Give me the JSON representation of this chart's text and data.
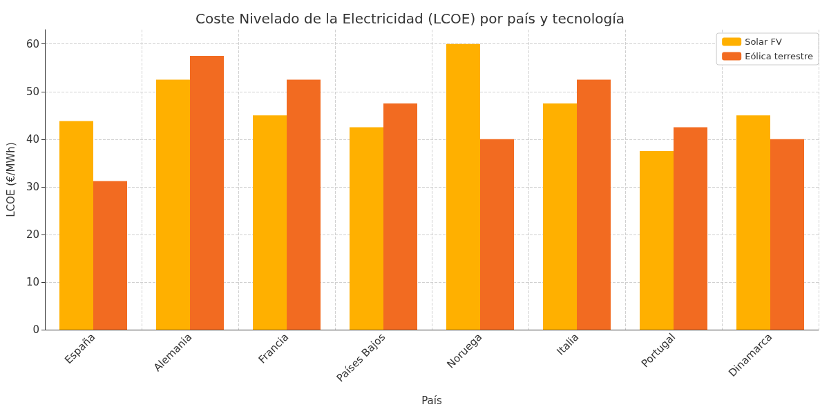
{
  "chart_data": {
    "type": "bar",
    "title": "Coste Nivelado de la Electricidad (LCOE) por país y tecnología",
    "xlabel": "País",
    "ylabel": "LCOE (€/MWh)",
    "categories": [
      "España",
      "Alemania",
      "Francia",
      "Países Bajos",
      "Noruega",
      "Italia",
      "Portugal",
      "Dinamarca"
    ],
    "series": [
      {
        "name": "Solar FV",
        "color": "#ffb000",
        "values": [
          43.8,
          52.5,
          45,
          42.5,
          60,
          47.5,
          37.5,
          45
        ]
      },
      {
        "name": "Eólica terrestre",
        "color": "#f26b21",
        "values": [
          31.2,
          57.5,
          52.5,
          47.5,
          40,
          52.5,
          42.5,
          40
        ]
      }
    ],
    "ylim": [
      0,
      63
    ],
    "yticks": [
      0,
      10,
      20,
      30,
      40,
      50,
      60
    ],
    "grid": true,
    "legend": "top right"
  }
}
